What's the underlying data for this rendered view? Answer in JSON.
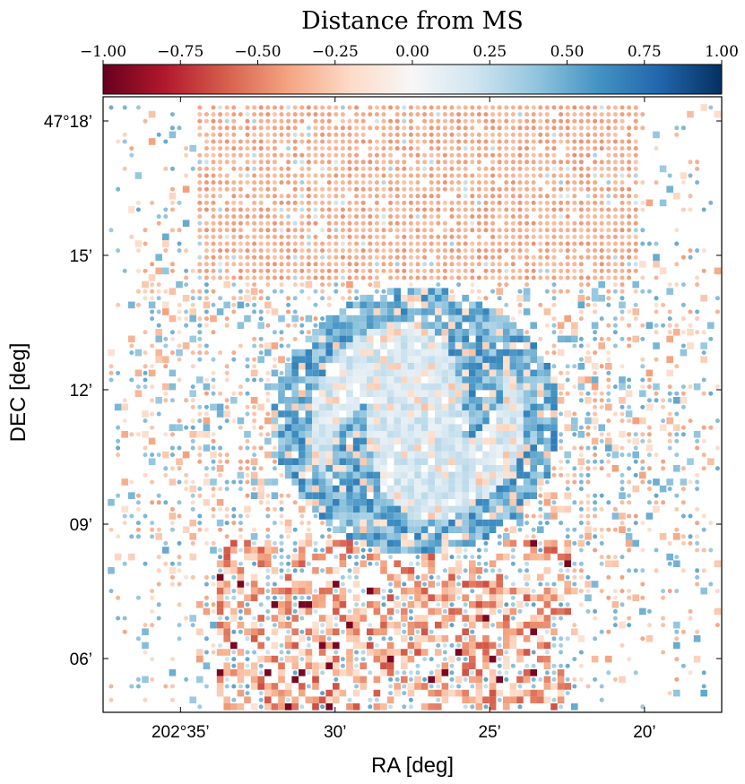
{
  "chart_data": {
    "type": "heatmap",
    "title": "Distance from MS",
    "xlabel": "RA [deg]",
    "ylabel": "DEC [deg]",
    "x_ticks": [
      {
        "value": 202.5833,
        "label": "202°35’"
      },
      {
        "value": 202.5,
        "label": "30’"
      },
      {
        "value": 202.4167,
        "label": "25’"
      },
      {
        "value": 202.3333,
        "label": "20’"
      }
    ],
    "y_ticks": [
      {
        "value": 47.3,
        "label": "47°18’"
      },
      {
        "value": 47.25,
        "label": "15’"
      },
      {
        "value": 47.2,
        "label": "12’"
      },
      {
        "value": 47.15,
        "label": "09’"
      },
      {
        "value": 47.1,
        "label": "06’"
      }
    ],
    "xlim": [
      202.625,
      202.2917
    ],
    "ylim": [
      47.08,
      47.309
    ],
    "colorbar": {
      "label": "Distance from MS",
      "colormap": "RdBu",
      "vmin": -1.0,
      "vmax": 1.0,
      "ticks": [
        {
          "value": -1.0,
          "label": "−1.00"
        },
        {
          "value": -0.75,
          "label": "−0.75"
        },
        {
          "value": -0.5,
          "label": "−0.50"
        },
        {
          "value": -0.25,
          "label": "−0.25"
        },
        {
          "value": 0.0,
          "label": "0.00"
        },
        {
          "value": 0.25,
          "label": "0.25"
        },
        {
          "value": 0.5,
          "label": "0.50"
        },
        {
          "value": 0.75,
          "label": "0.75"
        },
        {
          "value": 1.0,
          "label": "1.00"
        }
      ],
      "colors": [
        "#67001f",
        "#b2182b",
        "#d6604d",
        "#f4a582",
        "#fddbc7",
        "#f7f7f7",
        "#d1e5f0",
        "#92c5de",
        "#4393c3",
        "#2166ac",
        "#053061"
      ]
    },
    "grid": false,
    "legend": "none"
  }
}
